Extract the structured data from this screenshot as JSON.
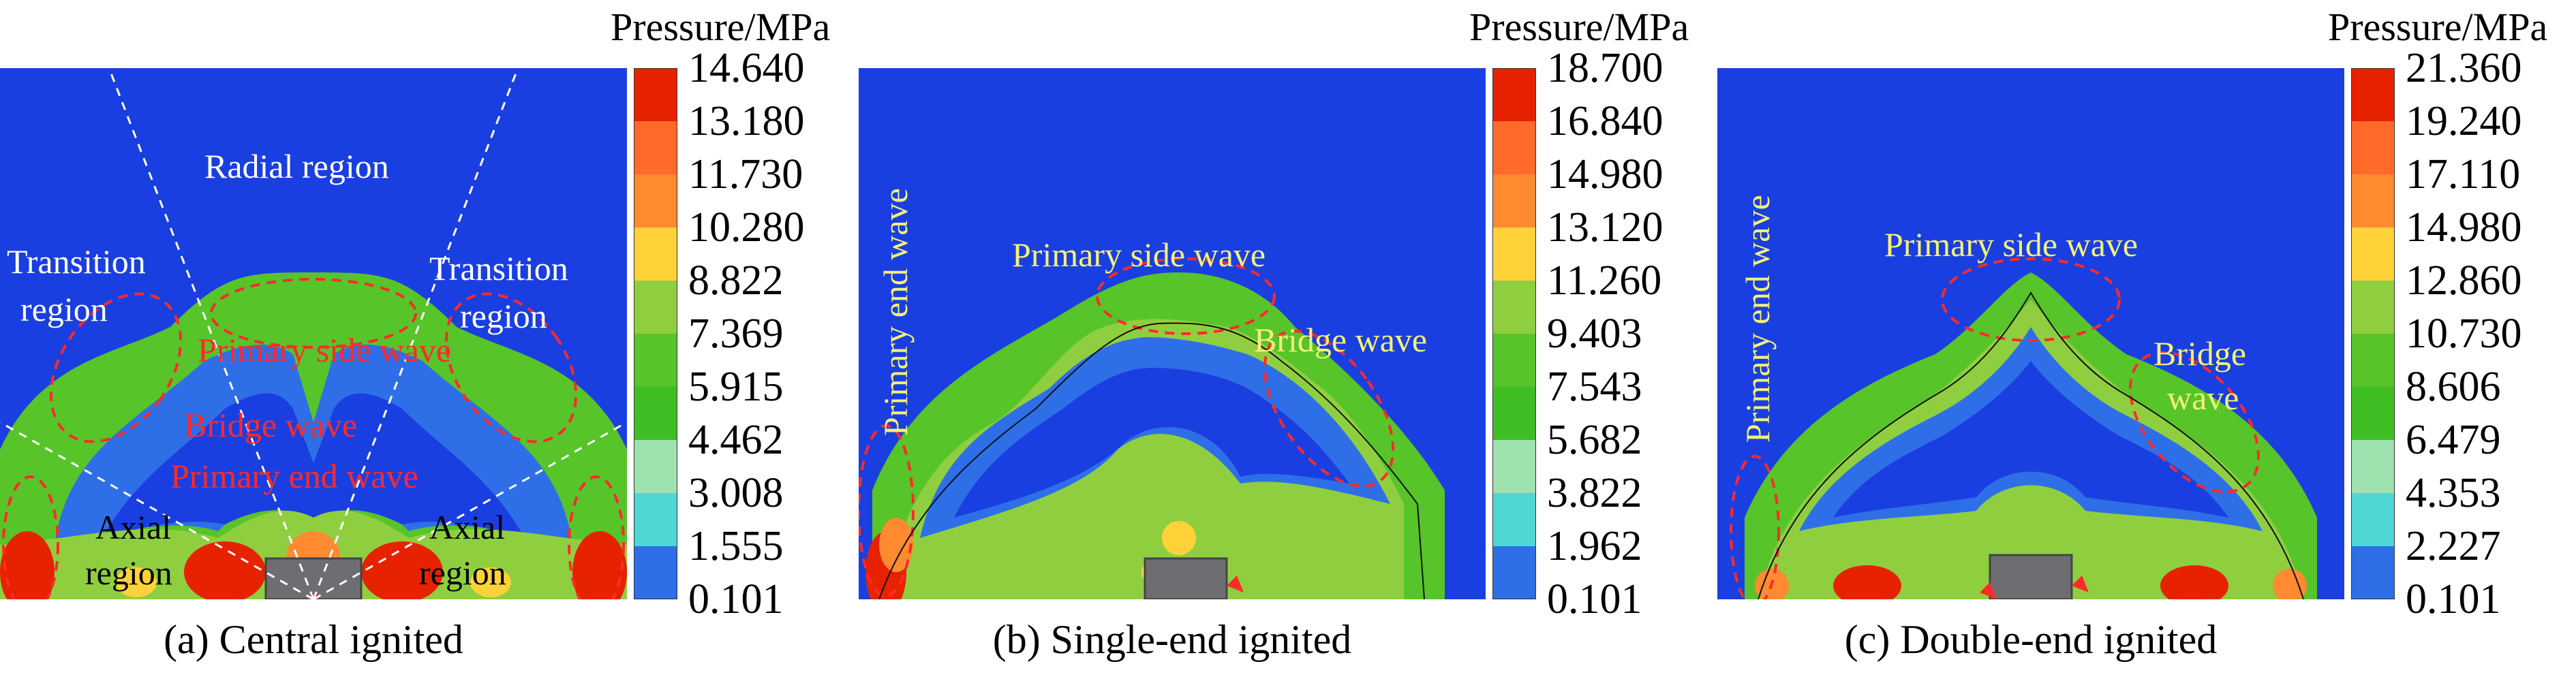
{
  "colorbar": {
    "title": "Pressure/MPa",
    "colors": [
      "#e62200",
      "#ff6a2b",
      "#ff8a30",
      "#ffd23a",
      "#8fcf3f",
      "#57c42a",
      "#3fbe24",
      "#9ee2b0",
      "#4fd7d6",
      "#2e6fe8",
      "#1a3fe0"
    ]
  },
  "panels": [
    {
      "caption": "(a) Central ignited",
      "ticks": [
        "14.640",
        "13.180",
        "11.730",
        "10.280",
        "8.822",
        "7.369",
        "5.915",
        "4.462",
        "3.008",
        "1.555",
        "0.101"
      ],
      "labels": {
        "radial": "Radial region",
        "transition_left_1": "Transition",
        "transition_left_2": "region",
        "transition_right_1": "Transition",
        "transition_right_2": "region",
        "primary_side_wave": "Primary side wave",
        "bridge_wave": "Bridge wave",
        "primary_end_wave": "Primary end wave",
        "axial_left_1": "Axial",
        "axial_left_2": "region",
        "axial_right_1": "Axial",
        "axial_right_2": "region"
      }
    },
    {
      "caption": "(b) Single-end ignited",
      "ticks": [
        "18.700",
        "16.840",
        "14.980",
        "13.120",
        "11.260",
        "9.403",
        "7.543",
        "5.682",
        "3.822",
        "1.962",
        "0.101"
      ],
      "labels": {
        "primary_end_wave": "Primary end wave",
        "primary_side_wave": "Primary side wave",
        "bridge_wave": "Bridge wave"
      }
    },
    {
      "caption": "(c) Double-end ignited",
      "ticks": [
        "21.360",
        "19.240",
        "17.110",
        "14.980",
        "12.860",
        "10.730",
        "8.606",
        "6.479",
        "4.353",
        "2.227",
        "0.101"
      ],
      "labels": {
        "primary_end_wave": "Primary end wave",
        "primary_side_wave": "Primary side wave",
        "bridge_wave_1": "Bridge",
        "bridge_wave_2": "wave"
      }
    }
  ]
}
